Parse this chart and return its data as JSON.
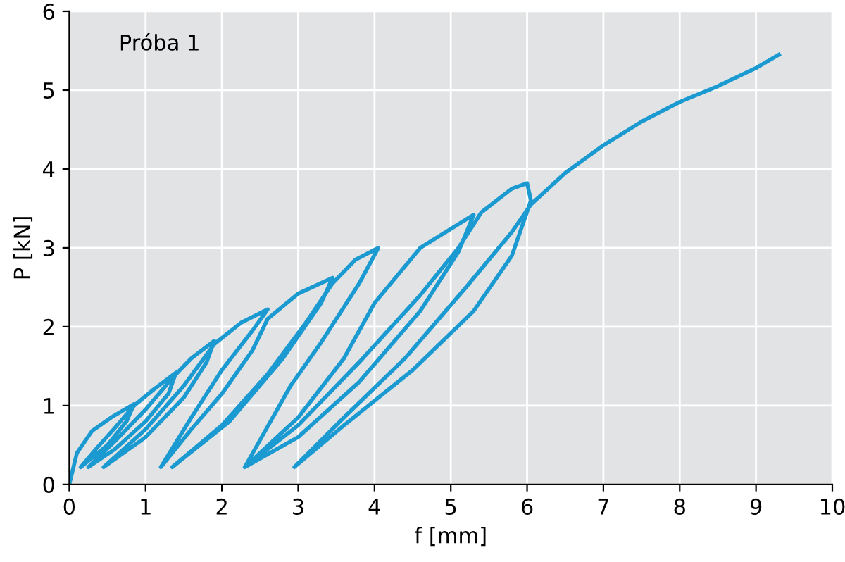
{
  "chart_data": {
    "type": "line",
    "xlabel": "f [mm]",
    "ylabel": "P [kN]",
    "annotations": [
      "Próba 1"
    ],
    "xlim": [
      0,
      10
    ],
    "ylim": [
      0,
      6
    ],
    "xticks": [
      0,
      1,
      2,
      3,
      4,
      5,
      6,
      7,
      8,
      9,
      10
    ],
    "yticks": [
      0,
      1,
      2,
      3,
      4,
      5,
      6
    ],
    "grid": true,
    "legend": false,
    "marker": "none",
    "line_style": "solid",
    "series": [
      {
        "color": "#1a9ad0",
        "x": [
          0,
          0.1,
          0.3,
          0.55,
          0.85,
          0.75,
          0.5,
          0.25,
          0.15,
          0.35,
          0.6,
          0.85,
          1.1,
          1.4,
          1.3,
          1.0,
          0.6,
          0.25,
          0.6,
          1.0,
          1.35,
          1.6,
          1.9,
          1.8,
          1.5,
          1.0,
          0.45,
          1.0,
          1.5,
          1.9,
          2.25,
          2.6,
          2.4,
          2.0,
          1.6,
          1.2,
          1.6,
          2.0,
          2.4,
          2.6,
          3.0,
          3.45,
          3.3,
          2.8,
          2.1,
          1.35,
          2.0,
          2.6,
          3.1,
          3.45,
          3.75,
          4.05,
          3.8,
          3.3,
          2.9,
          2.3,
          3.0,
          3.6,
          4.0,
          4.6,
          5.3,
          5.1,
          4.6,
          3.8,
          3.0,
          2.3,
          3.0,
          3.8,
          4.6,
          5.1,
          5.4,
          5.8,
          6.0,
          6.05,
          5.8,
          5.3,
          4.5,
          3.6,
          2.95,
          3.6,
          4.4,
          5.2,
          5.8,
          6.05,
          6.5,
          7.0,
          7.5,
          8.0,
          8.5,
          9.0,
          9.3
        ],
        "values": [
          0,
          0.4,
          0.68,
          0.85,
          1.02,
          0.8,
          0.5,
          0.3,
          0.22,
          0.45,
          0.72,
          1.0,
          1.2,
          1.42,
          1.15,
          0.8,
          0.45,
          0.22,
          0.55,
          0.95,
          1.35,
          1.6,
          1.82,
          1.55,
          1.1,
          0.6,
          0.22,
          0.7,
          1.25,
          1.78,
          2.05,
          2.22,
          1.95,
          1.45,
          0.85,
          0.22,
          0.7,
          1.15,
          1.7,
          2.1,
          2.42,
          2.62,
          2.3,
          1.6,
          0.8,
          0.22,
          0.75,
          1.4,
          2.05,
          2.55,
          2.85,
          3.0,
          2.55,
          1.8,
          1.25,
          0.22,
          0.85,
          1.6,
          2.3,
          3.0,
          3.42,
          2.95,
          2.2,
          1.3,
          0.6,
          0.22,
          0.75,
          1.55,
          2.4,
          3.0,
          3.45,
          3.75,
          3.82,
          3.6,
          2.9,
          2.2,
          1.45,
          0.75,
          0.22,
          0.85,
          1.6,
          2.5,
          3.2,
          3.55,
          3.95,
          4.3,
          4.6,
          4.85,
          5.05,
          5.28,
          5.45
        ]
      }
    ]
  }
}
